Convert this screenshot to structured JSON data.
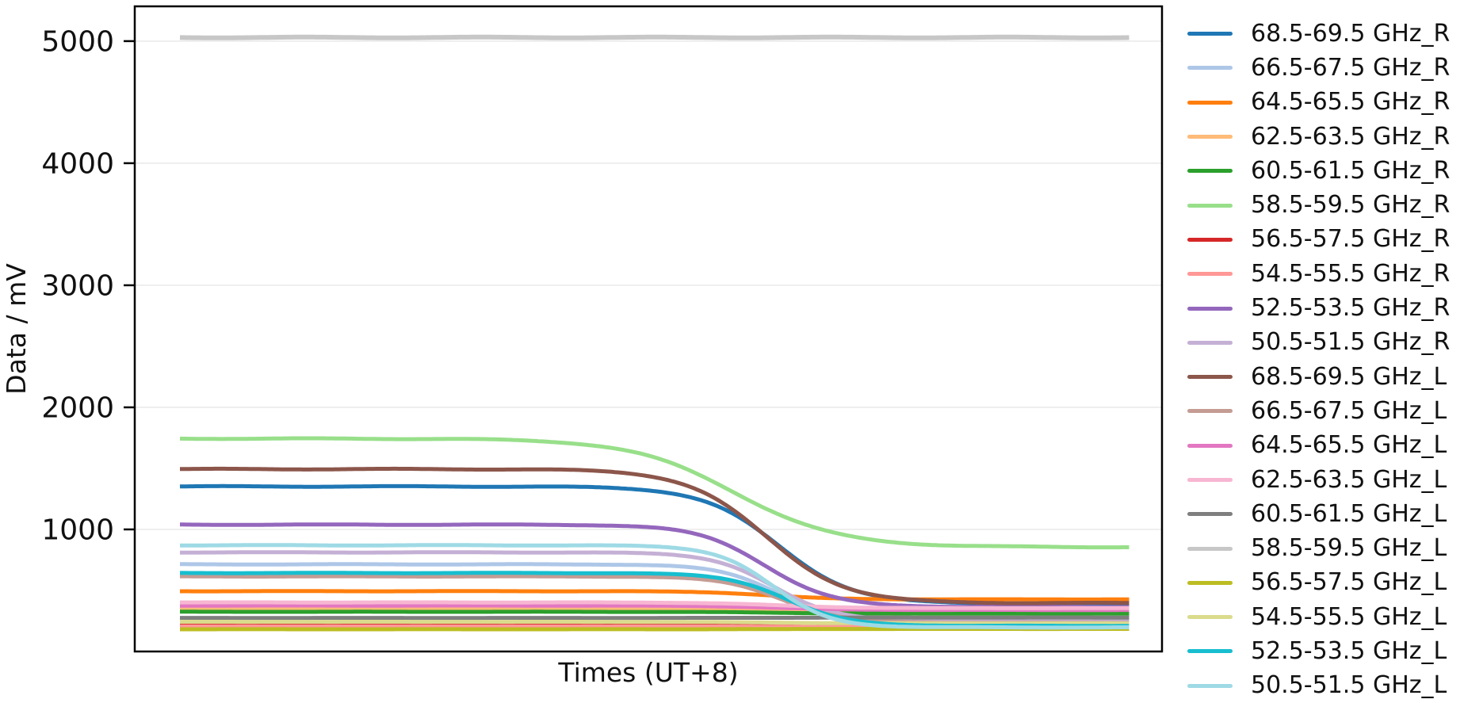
{
  "chart_data": {
    "type": "line",
    "title": "",
    "xlabel": "Times (UT+8)",
    "ylabel": "Data / mV",
    "ylim": [
      0,
      5285
    ],
    "yticks": [
      1000,
      2000,
      3000,
      4000,
      5000
    ],
    "ytick_labels": [
      "1000",
      "2000",
      "3000",
      "4000",
      "5000"
    ],
    "xticks": [],
    "x_domain_note": "relative time 0-1, no x tick labels shown",
    "grid": "horizontal",
    "gridline_color": "#e7e7e7",
    "axis_color": "#000000",
    "background_color": "#ffffff",
    "legend_position": "right-outside",
    "series_shape": "flat plateau, logistic drop to lower plateau; v = v_end + (v_start - v_end) / (1 + exp((t - drop_center)/drop_width))",
    "series": [
      {
        "name": "68.5-69.5 GHz_R",
        "color": "#1f77b4",
        "v_start": 1352,
        "v_end": 390,
        "drop_center": 0.63,
        "drop_width": 0.04
      },
      {
        "name": "66.5-67.5 GHz_R",
        "color": "#aec7e8",
        "v_start": 714,
        "v_end": 245,
        "drop_center": 0.63,
        "drop_width": 0.032
      },
      {
        "name": "64.5-65.5 GHz_R",
        "color": "#ff7f0e",
        "v_start": 494,
        "v_end": 427,
        "drop_center": 0.62,
        "drop_width": 0.035
      },
      {
        "name": "62.5-63.5 GHz_R",
        "color": "#ffbb78",
        "v_start": 350,
        "v_end": 330,
        "drop_center": 0.63,
        "drop_width": 0.04
      },
      {
        "name": "60.5-61.5 GHz_R",
        "color": "#2ca02c",
        "v_start": 325,
        "v_end": 310,
        "drop_center": 0.63,
        "drop_width": 0.04
      },
      {
        "name": "58.5-59.5 GHz_R",
        "color": "#98df8a",
        "v_start": 1744,
        "v_end": 855,
        "drop_center": 0.585,
        "drop_width": 0.055
      },
      {
        "name": "56.5-57.5 GHz_R",
        "color": "#d62728",
        "v_start": 215,
        "v_end": 212,
        "drop_center": 0.63,
        "drop_width": 0.04
      },
      {
        "name": "54.5-55.5 GHz_R",
        "color": "#ff9896",
        "v_start": 205,
        "v_end": 200,
        "drop_center": 0.63,
        "drop_width": 0.04
      },
      {
        "name": "52.5-53.5 GHz_R",
        "color": "#9467bd",
        "v_start": 1039,
        "v_end": 365,
        "drop_center": 0.617,
        "drop_width": 0.036
      },
      {
        "name": "50.5-51.5 GHz_R",
        "color": "#c5b0d5",
        "v_start": 812,
        "v_end": 255,
        "drop_center": 0.625,
        "drop_width": 0.032
      },
      {
        "name": "68.5-69.5 GHz_L",
        "color": "#8c564b",
        "v_start": 1494,
        "v_end": 396,
        "drop_center": 0.617,
        "drop_width": 0.042
      },
      {
        "name": "66.5-67.5 GHz_L",
        "color": "#c49c94",
        "v_start": 615,
        "v_end": 235,
        "drop_center": 0.635,
        "drop_width": 0.032
      },
      {
        "name": "64.5-65.5 GHz_L",
        "color": "#e377c2",
        "v_start": 376,
        "v_end": 340,
        "drop_center": 0.63,
        "drop_width": 0.04
      },
      {
        "name": "62.5-63.5 GHz_L",
        "color": "#f7b6d2",
        "v_start": 402,
        "v_end": 355,
        "drop_center": 0.63,
        "drop_width": 0.04
      },
      {
        "name": "60.5-61.5 GHz_L",
        "color": "#7f7f7f",
        "v_start": 275,
        "v_end": 278,
        "drop_center": 0.63,
        "drop_width": 0.04
      },
      {
        "name": "58.5-59.5 GHz_L",
        "color": "#c7c7c7",
        "v_start": 5030,
        "v_end": 5030,
        "drop_center": 0.63,
        "drop_width": 0.04
      },
      {
        "name": "56.5-57.5 GHz_L",
        "color": "#bcbd22",
        "v_start": 182,
        "v_end": 185,
        "drop_center": 0.63,
        "drop_width": 0.04
      },
      {
        "name": "54.5-55.5 GHz_L",
        "color": "#dbdb8d",
        "v_start": 243,
        "v_end": 230,
        "drop_center": 0.63,
        "drop_width": 0.04
      },
      {
        "name": "52.5-53.5 GHz_L",
        "color": "#17becf",
        "v_start": 643,
        "v_end": 210,
        "drop_center": 0.64,
        "drop_width": 0.032
      },
      {
        "name": "50.5-51.5 GHz_L",
        "color": "#9edae5",
        "v_start": 870,
        "v_end": 197,
        "drop_center": 0.625,
        "drop_width": 0.03
      }
    ]
  }
}
